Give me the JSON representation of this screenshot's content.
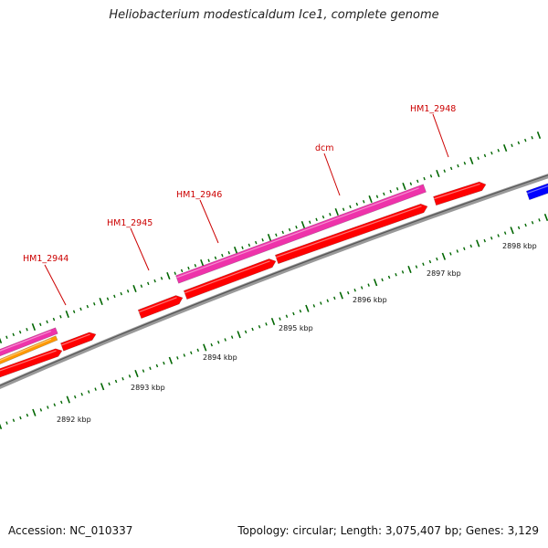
{
  "title": "Heliobacterium modesticaldum Ice1, complete genome",
  "footer": {
    "accession": "Accession: NC_010337",
    "summary": "Topology: circular; Length: 3,075,407 bp; Genes: 3,129"
  },
  "colors": {
    "gene_red": "#ff0000",
    "gene_pink": "#ee33aa",
    "gene_orange": "#ff9900",
    "gene_blue": "#0000ff",
    "tick_green": "#006600",
    "backbone": "#888888",
    "label_red": "#cc0000"
  },
  "scale_labels": [
    "2892 kbp",
    "2893 kbp",
    "2894 kbp",
    "2895 kbp",
    "2896 kbp",
    "2897 kbp",
    "2898 kbp"
  ],
  "gene_labels": [
    "HM1_2944",
    "HM1_2945",
    "HM1_2946",
    "dcm",
    "HM1_2948"
  ]
}
